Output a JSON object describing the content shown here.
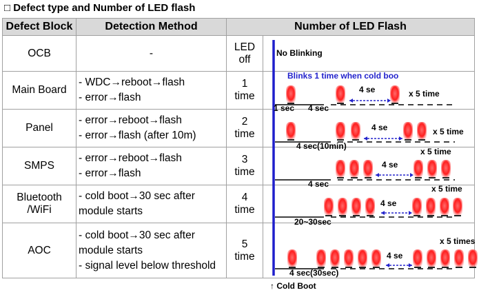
{
  "header": {
    "title": "□ Defect type and Number of LED flash"
  },
  "table": {
    "columns": [
      "Defect Block",
      "Detection Method",
      "Number of LED Flash"
    ],
    "rows": [
      {
        "block": "OCB",
        "method": [
          "-"
        ],
        "flash": "LED off"
      },
      {
        "block": "Main Board",
        "method": [
          "- WDC→reboot→flash",
          "- error→flash"
        ],
        "flash": "1 time"
      },
      {
        "block": "Panel",
        "method": [
          "- error→reboot→flash",
          "- error→flash (after 10m)"
        ],
        "flash": "2 time"
      },
      {
        "block": "SMPS",
        "method": [
          "- error→reboot→flash",
          "- error→flash"
        ],
        "flash": "3 time"
      },
      {
        "block": "Bluetooth /WiFi",
        "method": [
          "- cold boot→30 sec after",
          "module starts"
        ],
        "flash": "4 time"
      },
      {
        "block": "AOC",
        "method": [
          "- cold boot→30 sec after",
          "module starts",
          "- signal level below threshold"
        ],
        "flash": "5 time"
      }
    ]
  },
  "diagram": {
    "cold_boot": "↑ Cold Boot",
    "rows": [
      {
        "labels": [
          "No Blinking"
        ]
      },
      {
        "labels": [
          "Blinks 1 time when cold boo",
          "4 se",
          "x 5 time",
          "1 sec",
          "4 sec"
        ]
      },
      {
        "labels": [
          "4 se",
          "x 5 time",
          "4 sec(10min)"
        ]
      },
      {
        "labels": [
          "4 se",
          "x 5 time",
          "4 sec"
        ]
      },
      {
        "labels": [
          "4 se",
          "x 5 time",
          "20~30sec"
        ]
      },
      {
        "labels": [
          "4 se",
          "x 5 times",
          "4 sec(30sec)"
        ]
      }
    ]
  }
}
